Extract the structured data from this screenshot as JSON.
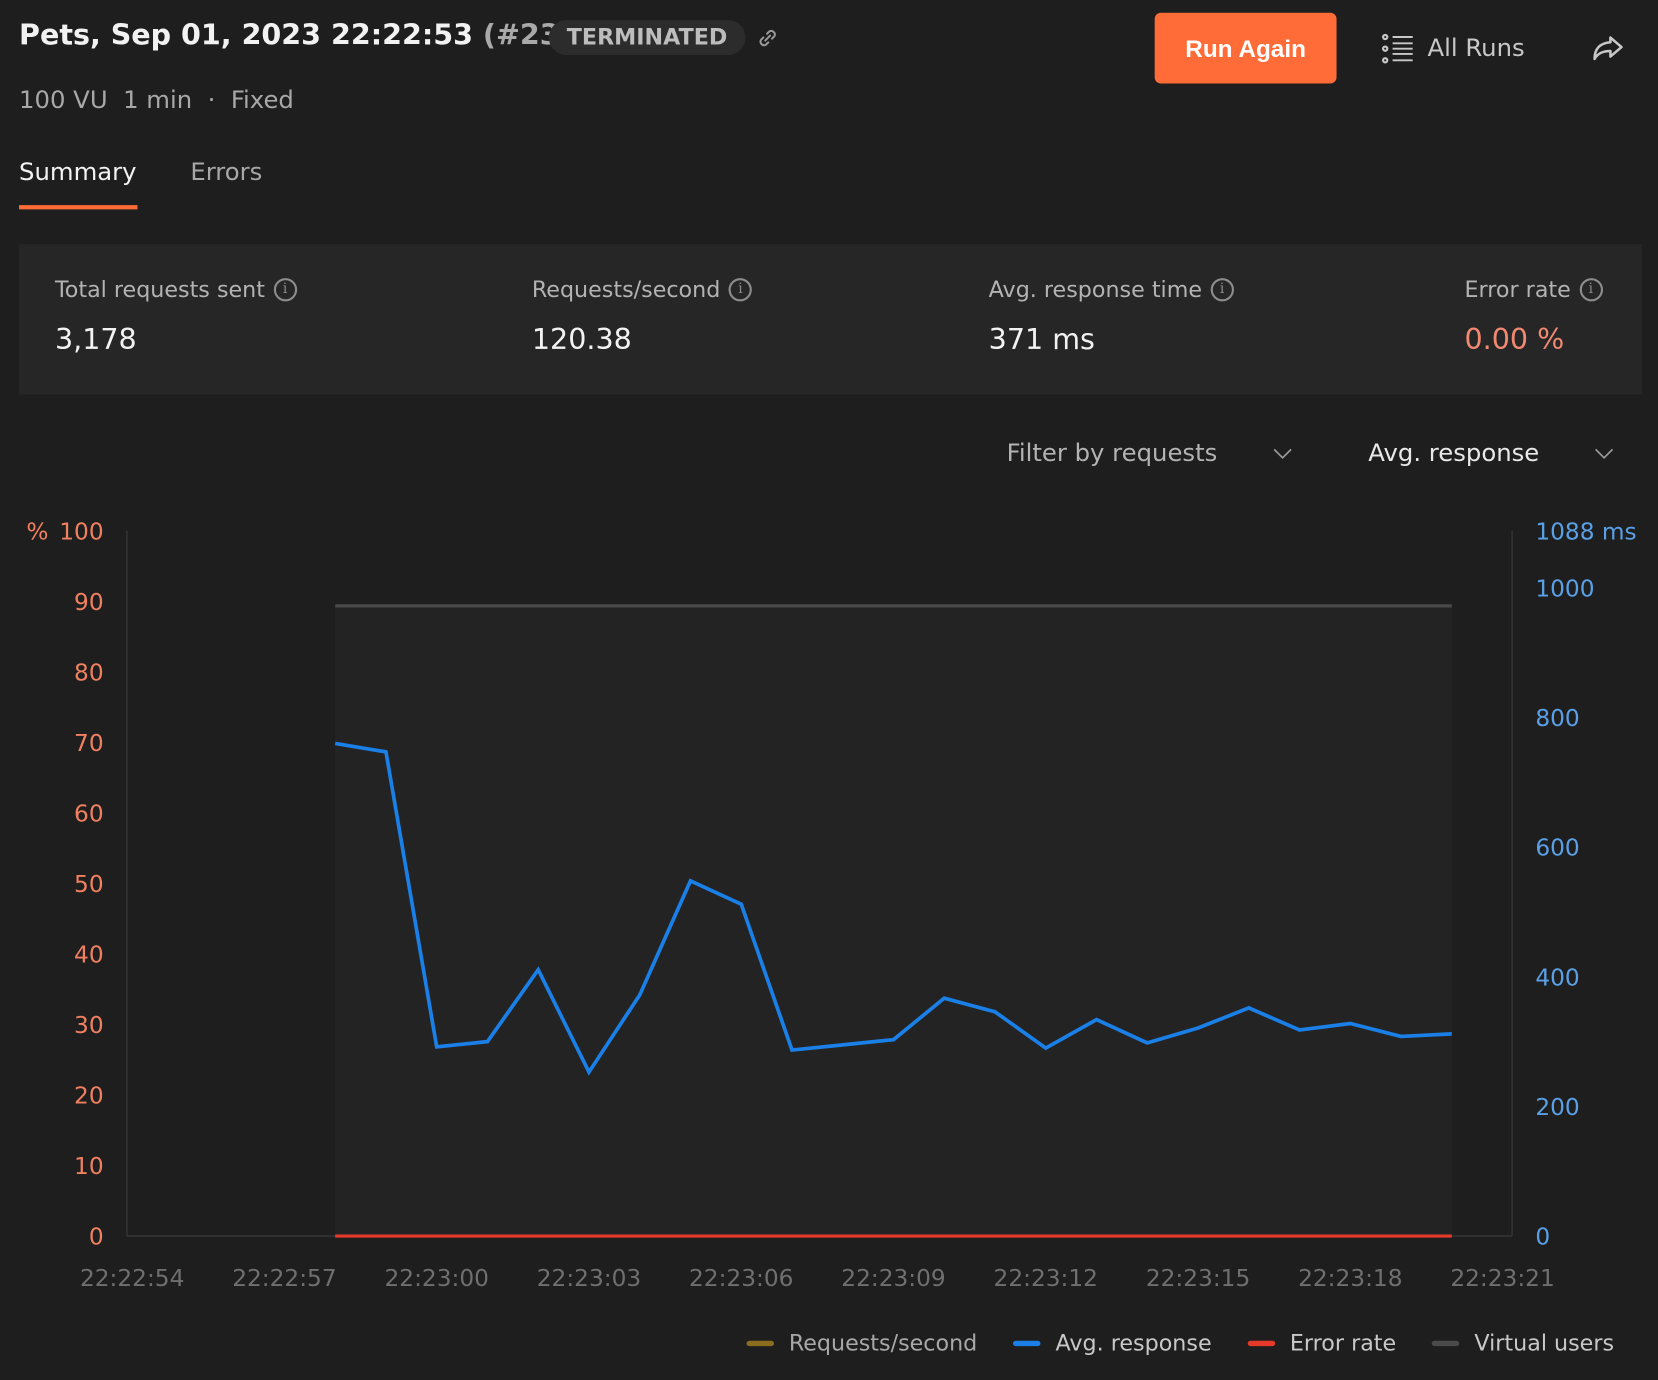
{
  "header": {
    "title": "Pets, Sep 01, 2023 22:22:53",
    "run_number": "(#23)",
    "status": "TERMINATED",
    "run_again": "Run Again",
    "all_runs": "All Runs",
    "meta": {
      "vu": "100 VU",
      "duration": "1 min",
      "separator": "·",
      "profile": "Fixed"
    }
  },
  "tabs": [
    {
      "label": "Summary",
      "active": true
    },
    {
      "label": "Errors",
      "active": false
    }
  ],
  "stats": [
    {
      "label": "Total requests sent",
      "value": "3,178"
    },
    {
      "label": "Requests/second",
      "value": "120.38"
    },
    {
      "label": "Avg. response time",
      "value": "371 ms"
    },
    {
      "label": "Error rate",
      "value": "0.00 %"
    }
  ],
  "filters": {
    "requests": "Filter by requests",
    "metric": "Avg. response"
  },
  "colors": {
    "accent": "#ff6c37",
    "avg_response": "#1a7fe6",
    "error_rate": "#e53a2a",
    "requests_per_second": "#8a6d1e",
    "virtual_users": "#4a4a4a",
    "left_axis": "#f08060",
    "right_axis": "#5aa0e6",
    "error_value": "#f08872"
  },
  "chart_data": {
    "type": "line",
    "x": [
      "22:22:58",
      "22:22:59",
      "22:23:00",
      "22:23:01",
      "22:23:02",
      "22:23:03",
      "22:23:04",
      "22:23:05",
      "22:23:06",
      "22:23:07",
      "22:23:08",
      "22:23:09",
      "22:23:10",
      "22:23:11",
      "22:23:12",
      "22:23:13",
      "22:23:14",
      "22:23:15",
      "22:23:16",
      "22:23:17",
      "22:23:18",
      "22:23:19",
      "22:23:20"
    ],
    "x_ticks": [
      "22:22:54",
      "22:22:57",
      "22:23:00",
      "22:23:03",
      "22:23:06",
      "22:23:09",
      "22:23:12",
      "22:23:15",
      "22:23:18",
      "22:23:21"
    ],
    "xlim": [
      "22:22:54",
      "22:23:21"
    ],
    "left_axis": {
      "label": "%",
      "ticks": [
        100,
        90,
        80,
        70,
        60,
        50,
        40,
        30,
        20,
        10,
        0
      ],
      "ylim": [
        0,
        100
      ]
    },
    "right_axis": {
      "unit": "ms",
      "max_label": "1088 ms",
      "ticks": [
        1000,
        800,
        600,
        400,
        200,
        0
      ],
      "ylim": [
        0,
        1088
      ]
    },
    "series": [
      {
        "name": "Requests/second",
        "visible": false
      },
      {
        "name": "Avg. response",
        "axis": "right",
        "values": [
          760,
          747,
          292,
          300,
          411,
          253,
          372,
          548,
          512,
          287,
          295,
          303,
          367,
          346,
          290,
          334,
          298,
          321,
          352,
          318,
          328,
          308,
          312
        ]
      },
      {
        "name": "Error rate",
        "axis": "left",
        "values": [
          0,
          0,
          0,
          0,
          0,
          0,
          0,
          0,
          0,
          0,
          0,
          0,
          0,
          0,
          0,
          0,
          0,
          0,
          0,
          0,
          0,
          0,
          0
        ]
      },
      {
        "name": "Virtual users",
        "constant": 100
      }
    ],
    "legend_position": "bottom-right",
    "grid": false
  }
}
